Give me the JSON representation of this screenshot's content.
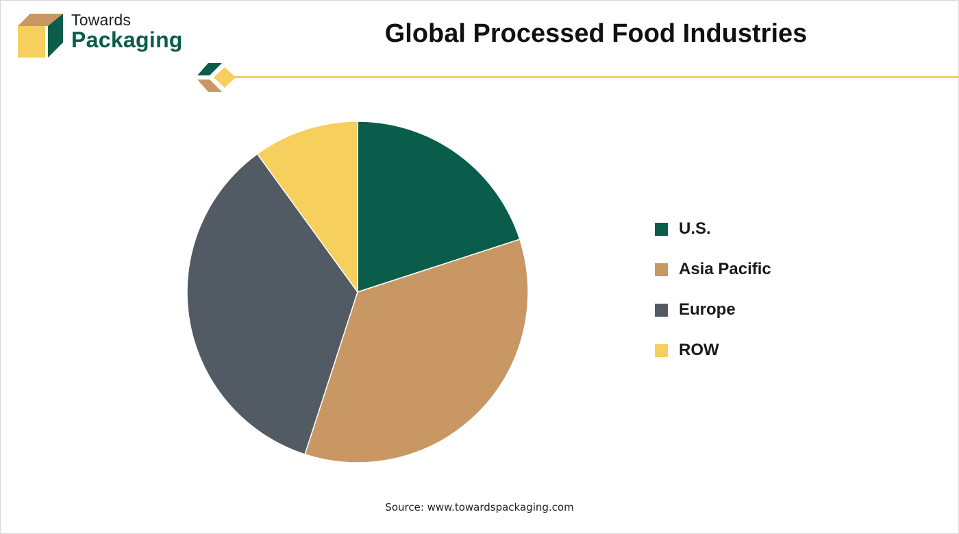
{
  "brand": {
    "line1": "Towards",
    "line2": "Packaging",
    "colors": {
      "green": "#0a5c4b",
      "tan": "#c99763",
      "yellow": "#f6cf5c"
    }
  },
  "icons": {
    "logo": "box-logo-icon",
    "divider": "diamond-divider-icon"
  },
  "title": "Global Processed Food Industries",
  "source": "Source: www.towardspackaging.com",
  "chart_data": {
    "type": "pie",
    "title": "Global Processed Food Industries",
    "start_angle_deg": 0,
    "direction": "clockwise",
    "legend_position": "right",
    "slices": [
      {
        "label": "U.S.",
        "value": 20,
        "color": "#0a5c4b"
      },
      {
        "label": "Asia Pacific",
        "value": 35,
        "color": "#c99763"
      },
      {
        "label": "Europe",
        "value": 35,
        "color": "#525a63"
      },
      {
        "label": "ROW",
        "value": 10,
        "color": "#f6cf5c"
      }
    ]
  }
}
